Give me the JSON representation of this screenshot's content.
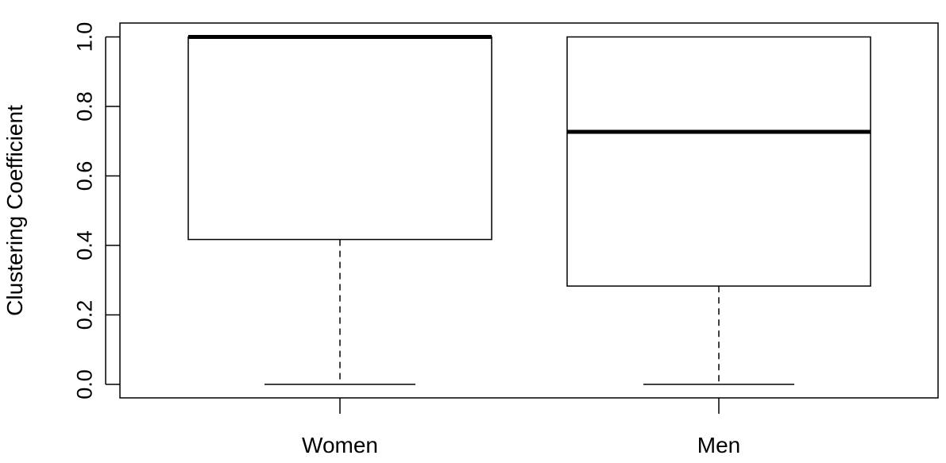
{
  "chart_data": {
    "type": "box",
    "title": "",
    "xlabel": "",
    "ylabel": "Clustering Coefficient",
    "ylim": [
      -0.04,
      1.04
    ],
    "yticks": [
      0.0,
      0.2,
      0.4,
      0.6,
      0.8,
      1.0
    ],
    "ytick_labels": [
      "0.0",
      "0.2",
      "0.4",
      "0.6",
      "0.8",
      "1.0"
    ],
    "categories": [
      "Women",
      "Men"
    ],
    "boxes": [
      {
        "category": "Women",
        "whisker_low": 0.0,
        "q1": 0.417,
        "median": 1.0,
        "q3": 1.0,
        "whisker_high": 1.0
      },
      {
        "category": "Men",
        "whisker_low": 0.0,
        "q1": 0.283,
        "median": 0.727,
        "q3": 1.0,
        "whisker_high": 1.0
      }
    ],
    "grid": false,
    "legend": "none"
  }
}
